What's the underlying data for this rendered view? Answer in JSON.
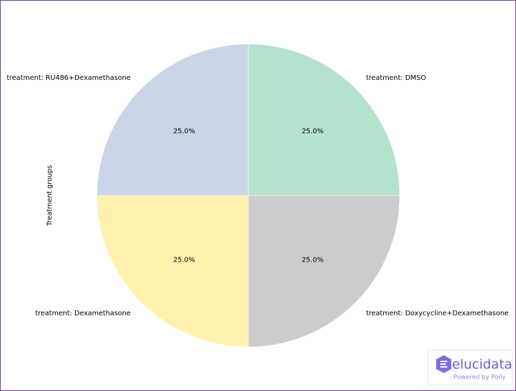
{
  "chart_data": {
    "type": "pie",
    "ylabel": "Treatment groups",
    "categories": [
      "treatment: DMSO",
      "treatment: RU486+Dexamethasone",
      "treatment: Dexamethasone",
      "treatment: Doxycycline+Dexamethasone"
    ],
    "values": [
      25,
      25,
      25,
      25
    ],
    "value_labels": [
      "25.0%",
      "25.0%",
      "25.0%",
      "25.0%"
    ],
    "colors": [
      "#b3e2cd",
      "#cbd5e8",
      "#fff2ae",
      "#cccccc"
    ]
  },
  "logo": {
    "name": "elucidata",
    "tagline": "Powered by Polly"
  }
}
